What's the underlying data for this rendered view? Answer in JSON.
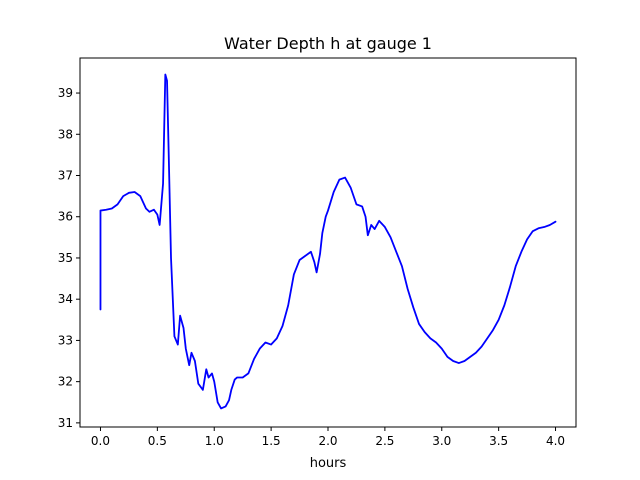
{
  "chart_data": {
    "type": "line",
    "title": "Water Depth h at gauge 1",
    "xlabel": "hours",
    "ylabel": "",
    "xlim": [
      -0.18,
      4.18
    ],
    "ylim": [
      30.9,
      39.85
    ],
    "xticks": [
      0.0,
      0.5,
      1.0,
      1.5,
      2.0,
      2.5,
      3.0,
      3.5,
      4.0
    ],
    "xtick_labels": [
      "0.0",
      "0.5",
      "1.0",
      "1.5",
      "2.0",
      "2.5",
      "3.0",
      "3.5",
      "4.0"
    ],
    "yticks": [
      31,
      32,
      33,
      34,
      35,
      36,
      37,
      38,
      39
    ],
    "ytick_labels": [
      "31",
      "32",
      "33",
      "34",
      "35",
      "36",
      "37",
      "38",
      "39"
    ],
    "grid": false,
    "line_color": "#0000ff",
    "series": [
      {
        "x": [
          0.0,
          0.0,
          0.05,
          0.1,
          0.15,
          0.2,
          0.25,
          0.3,
          0.35,
          0.4,
          0.43,
          0.47,
          0.5,
          0.52,
          0.55,
          0.57,
          0.585,
          0.6,
          0.62,
          0.65,
          0.68,
          0.7,
          0.73,
          0.75,
          0.78,
          0.8,
          0.83,
          0.86,
          0.9,
          0.93,
          0.95,
          0.98,
          1.0,
          1.03,
          1.06,
          1.1,
          1.13,
          1.15,
          1.18,
          1.2,
          1.25,
          1.3,
          1.35,
          1.4,
          1.45,
          1.5,
          1.55,
          1.6,
          1.65,
          1.7,
          1.75,
          1.8,
          1.85,
          1.88,
          1.9,
          1.93,
          1.95,
          1.98,
          2.0,
          2.05,
          2.1,
          2.15,
          2.2,
          2.25,
          2.3,
          2.33,
          2.35,
          2.38,
          2.41,
          2.45,
          2.5,
          2.55,
          2.6,
          2.65,
          2.7,
          2.75,
          2.8,
          2.85,
          2.9,
          2.95,
          3.0,
          3.05,
          3.1,
          3.15,
          3.2,
          3.25,
          3.3,
          3.35,
          3.4,
          3.45,
          3.5,
          3.55,
          3.6,
          3.65,
          3.7,
          3.75,
          3.8,
          3.85,
          3.9,
          3.95,
          4.0
        ],
        "y": [
          33.75,
          36.15,
          36.17,
          36.2,
          36.3,
          36.5,
          36.58,
          36.6,
          36.5,
          36.2,
          36.12,
          36.17,
          36.05,
          35.8,
          36.8,
          39.45,
          39.3,
          37.5,
          35.0,
          33.1,
          32.9,
          33.6,
          33.3,
          32.8,
          32.4,
          32.7,
          32.5,
          31.95,
          31.8,
          32.3,
          32.1,
          32.2,
          32.0,
          31.5,
          31.35,
          31.4,
          31.55,
          31.8,
          32.05,
          32.1,
          32.1,
          32.2,
          32.55,
          32.8,
          32.95,
          32.9,
          33.05,
          33.35,
          33.85,
          34.6,
          34.95,
          35.05,
          35.15,
          34.9,
          34.65,
          35.1,
          35.6,
          36.0,
          36.15,
          36.6,
          36.9,
          36.95,
          36.7,
          36.3,
          36.25,
          36.0,
          35.55,
          35.8,
          35.7,
          35.9,
          35.75,
          35.5,
          35.15,
          34.8,
          34.25,
          33.8,
          33.4,
          33.2,
          33.05,
          32.95,
          32.8,
          32.6,
          32.5,
          32.45,
          32.5,
          32.6,
          32.7,
          32.85,
          33.05,
          33.25,
          33.5,
          33.85,
          34.3,
          34.8,
          35.15,
          35.45,
          35.65,
          35.72,
          35.75,
          35.8,
          35.88
        ]
      }
    ]
  }
}
